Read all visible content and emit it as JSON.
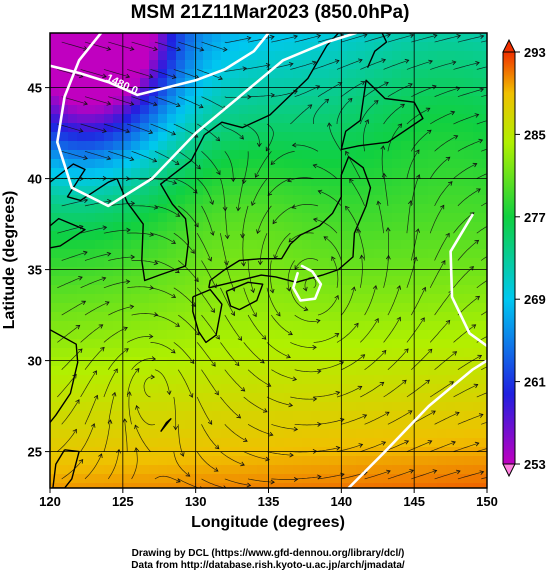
{
  "chart_data": {
    "type": "heatmap",
    "title": "MSM 21Z11Mar2023 (850.0hPa)",
    "xlabel": "Longitude (degrees)",
    "ylabel": "Latitude  (degrees)",
    "xlim": [
      120,
      150
    ],
    "ylim": [
      23,
      48
    ],
    "x_ticks": [
      "120",
      "125",
      "130",
      "135",
      "140",
      "145",
      "150"
    ],
    "y_ticks": [
      "25",
      "30",
      "35",
      "40",
      "45"
    ],
    "x_tick_values": [
      120,
      125,
      130,
      135,
      140,
      145,
      150
    ],
    "y_tick_values": [
      25,
      30,
      35,
      40,
      45
    ],
    "grid": true,
    "colorbar": {
      "min": 253,
      "max": 293,
      "tick_values": [
        253,
        261,
        269,
        277,
        285,
        293
      ],
      "tick_labels": [
        "253",
        "261",
        "269",
        "277",
        "285",
        "293"
      ],
      "colors": [
        "#c000c0",
        "#2020e0",
        "#00c8f0",
        "#10d040",
        "#b0f000",
        "#f0c000",
        "#f03000"
      ]
    },
    "contour_labels": [
      {
        "text": "1480.0",
        "lon": 123.8,
        "lat": 45.4
      }
    ],
    "contours": [
      {
        "name": "contour-1480-north",
        "points": [
          [
            120,
            46.2
          ],
          [
            122,
            45.8
          ],
          [
            124,
            45.3
          ],
          [
            126,
            44.6
          ],
          [
            128,
            45.0
          ],
          [
            130,
            45.4
          ],
          [
            132,
            46.0
          ],
          [
            134,
            47.0
          ],
          [
            135,
            48
          ]
        ]
      },
      {
        "name": "contour-1500-west",
        "points": [
          [
            123.5,
            48
          ],
          [
            122,
            46.5
          ],
          [
            121,
            44.5
          ],
          [
            120.5,
            42
          ],
          [
            121.5,
            39.5
          ],
          [
            124,
            38.5
          ],
          [
            127,
            40
          ],
          [
            130,
            42.5
          ],
          [
            133,
            44.5
          ],
          [
            136,
            46.5
          ],
          [
            139,
            47.5
          ],
          [
            141,
            48
          ]
        ]
      },
      {
        "name": "contour-1500-low",
        "points": [
          [
            137,
            34.8
          ],
          [
            136.7,
            34.0
          ],
          [
            137.2,
            33.3
          ],
          [
            138.2,
            33.4
          ],
          [
            138.6,
            34.2
          ],
          [
            138.0,
            34.9
          ],
          [
            137.3,
            35.2
          ]
        ]
      },
      {
        "name": "contour-1520-east",
        "points": [
          [
            149,
            38
          ],
          [
            147.5,
            36
          ],
          [
            147.6,
            33.5
          ],
          [
            148.8,
            31.5
          ],
          [
            150,
            30.8
          ]
        ]
      },
      {
        "name": "contour-1540-southeast",
        "points": [
          [
            140.5,
            23
          ],
          [
            143,
            25
          ],
          [
            146,
            27.5
          ],
          [
            149,
            29.5
          ],
          [
            150,
            30
          ]
        ]
      }
    ]
  },
  "credits": {
    "line1": "Drawing by DCL (https://www.gfd-dennou.org/library/dcl/)",
    "line2": "Data from http://database.rish.kyoto-u.ac.jp/arch/jmadata/"
  }
}
